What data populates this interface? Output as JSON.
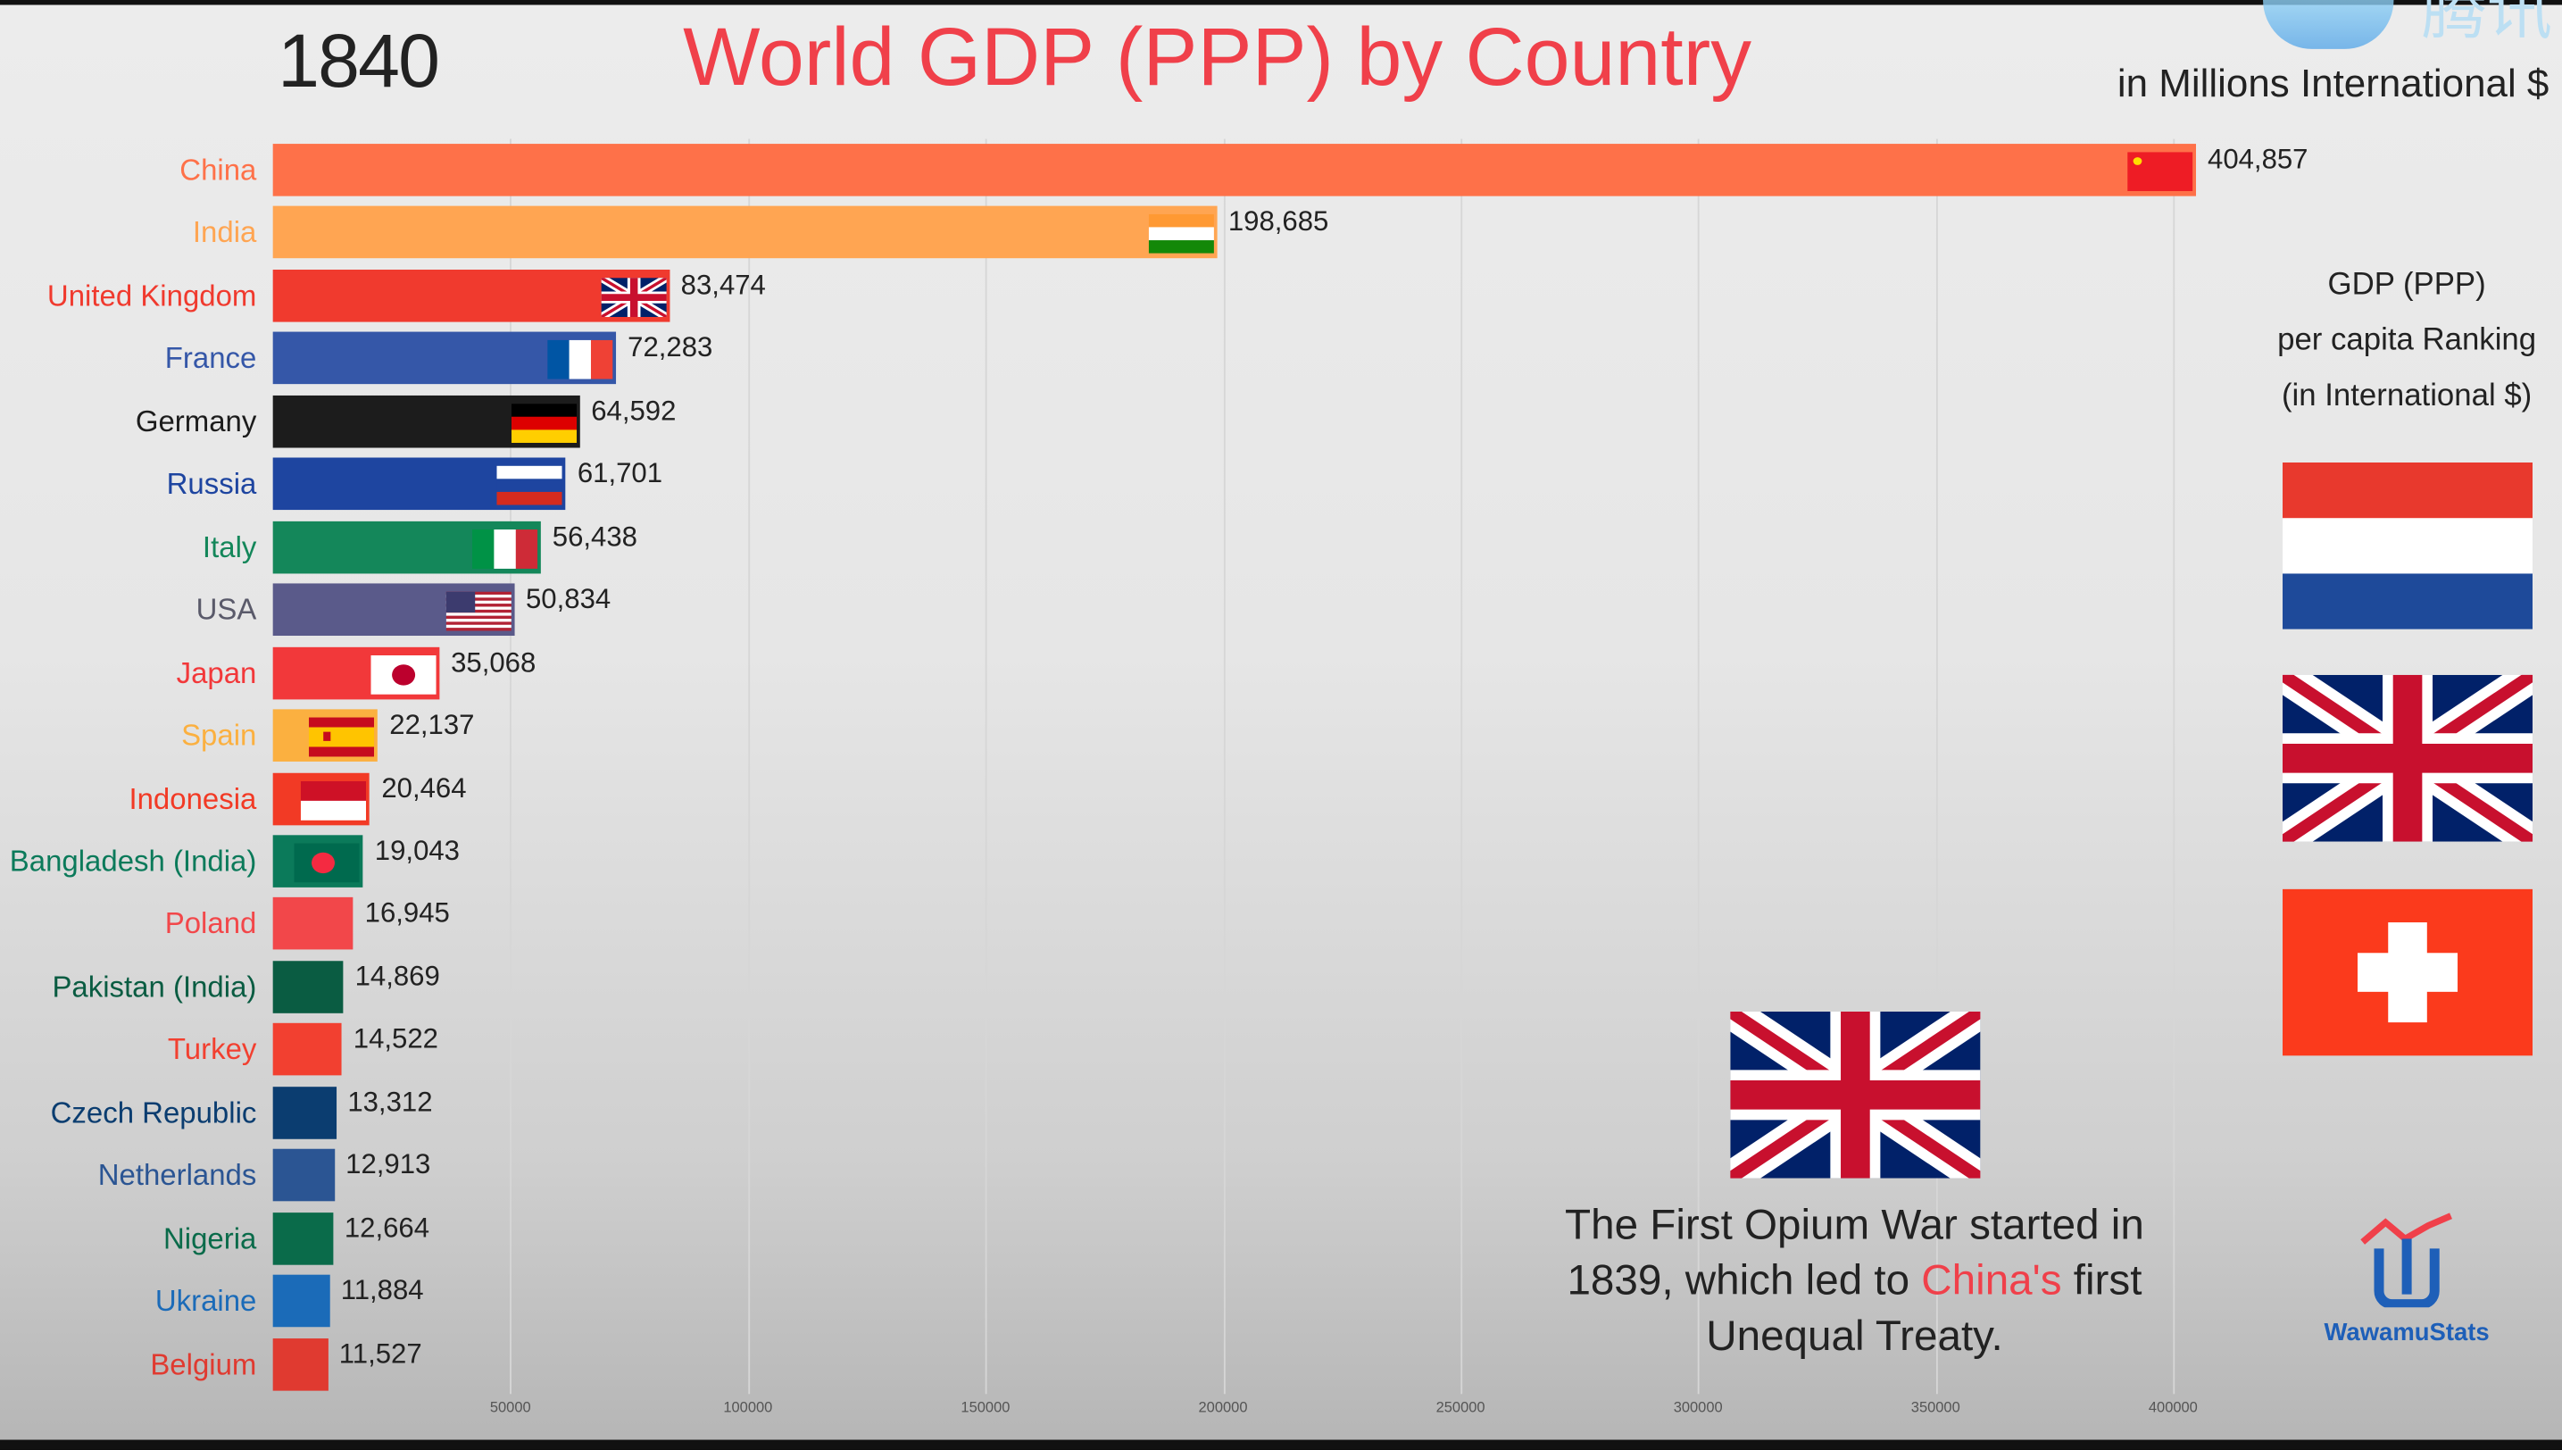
{
  "header": {
    "year": "1840",
    "title": "World GDP (PPP) by Country",
    "units": "in Millions International $",
    "watermark": "腾讯"
  },
  "chart_data": {
    "type": "bar",
    "orientation": "horizontal",
    "title": "World GDP (PPP) by Country",
    "xlim": [
      0,
      420000
    ],
    "xticks": [
      "50000",
      "100000",
      "150000",
      "200000",
      "250000",
      "300000",
      "350000",
      "400000"
    ],
    "grid": true,
    "categories": [
      "China",
      "India",
      "United Kingdom",
      "France",
      "Germany",
      "Russia",
      "Italy",
      "USA",
      "Japan",
      "Spain",
      "Indonesia",
      "Bangladesh (India)",
      "Poland",
      "Pakistan (India)",
      "Turkey",
      "Czech Republic",
      "Netherlands",
      "Nigeria",
      "Ukraine",
      "Belgium"
    ],
    "values": [
      404857,
      198685,
      83474,
      72283,
      64592,
      61701,
      56438,
      50834,
      35068,
      22137,
      20464,
      19043,
      16945,
      14869,
      14522,
      13312,
      12913,
      12664,
      11884,
      11527
    ],
    "value_labels": [
      "404,857",
      "198,685",
      "83,474",
      "72,283",
      "64,592",
      "61,701",
      "56,438",
      "50,834",
      "35,068",
      "22,137",
      "20,464",
      "19,043",
      "16,945",
      "14,869",
      "14,522",
      "13,312",
      "12,913",
      "12,664",
      "11,884",
      "11,527"
    ],
    "colors": [
      "#fe7149",
      "#ffa552",
      "#f03a2e",
      "#3557a8",
      "#1c1c1c",
      "#1e45a0",
      "#14875a",
      "#5a5a8a",
      "#f2383a",
      "#fbb040",
      "#f23a25",
      "#0b7a5a",
      "#f2474a",
      "#0a5c42",
      "#f24030",
      "#0b3d70",
      "#2b5593",
      "#0a6b4a",
      "#1b6bb8",
      "#e03a30"
    ],
    "label_colors": [
      "#fe7149",
      "#ffa552",
      "#f03a2e",
      "#3557a8",
      "#1c1c1c",
      "#1e45a0",
      "#14875a",
      "#5a5a6a",
      "#f2383a",
      "#fbb040",
      "#f23a25",
      "#0b7a5a",
      "#f2474a",
      "#0a5c42",
      "#f24030",
      "#0b3d70",
      "#2b5593",
      "#0a6b4a",
      "#1b6bb8",
      "#e03a30"
    ],
    "flags": [
      "china",
      "india",
      "uk",
      "france",
      "germany",
      "russia",
      "italy",
      "usa",
      "japan",
      "spain",
      "indonesia",
      "bangladesh",
      "",
      "",
      "",
      "",
      "",
      "",
      "",
      ""
    ]
  },
  "side_panel": {
    "lines": [
      "GDP (PPP)",
      "per capita Ranking",
      "(in International $)"
    ],
    "flags": [
      "netherlands",
      "uk",
      "switzerland"
    ]
  },
  "event": {
    "line1": "The First Opium War started in",
    "line2a": "1839, which led to ",
    "line2b": "China's",
    "line2c": " first",
    "line3": "Unequal Treaty.",
    "flag": "uk"
  },
  "logo": {
    "text": "WawamuStats"
  }
}
